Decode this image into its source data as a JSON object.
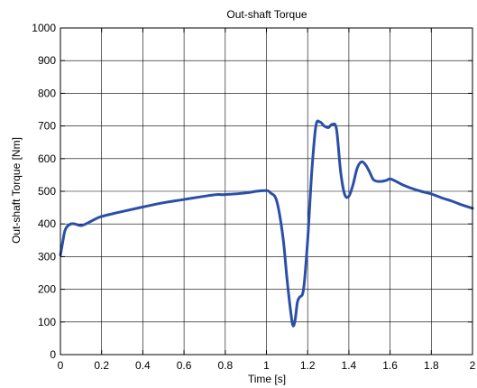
{
  "chart_data": {
    "type": "line",
    "title": "Out-shaft Torque",
    "xlabel": "Time [s]",
    "ylabel": "Out-shaft Torque [Nm]",
    "xlim": [
      0,
      2
    ],
    "ylim": [
      0,
      1000
    ],
    "grid": true,
    "x_ticks": [
      0,
      0.2,
      0.4,
      0.6,
      0.8,
      1,
      1.2,
      1.4,
      1.6,
      1.8,
      2
    ],
    "x_tick_labels": [
      "0",
      "0.2",
      "0.4",
      "0.6",
      "0.8",
      "1",
      "1.2",
      "1.4",
      "1.6",
      "1.8",
      "2"
    ],
    "y_ticks": [
      0,
      100,
      200,
      300,
      400,
      500,
      600,
      700,
      800,
      900,
      1000
    ],
    "y_tick_labels": [
      "0",
      "100",
      "200",
      "300",
      "400",
      "500",
      "600",
      "700",
      "800",
      "900",
      "1000"
    ],
    "line_color": "#2b4fa8",
    "series": [
      {
        "x": [
          0,
          0.01,
          0.02,
          0.03,
          0.05,
          0.07,
          0.1,
          0.13,
          0.16,
          0.2,
          0.3,
          0.4,
          0.5,
          0.6,
          0.7,
          0.76,
          0.8,
          0.9,
          0.95,
          1.0,
          1.02,
          1.05,
          1.08,
          1.1,
          1.12,
          1.13,
          1.14,
          1.15,
          1.16,
          1.18,
          1.2,
          1.22,
          1.24,
          1.26,
          1.28,
          1.3,
          1.32,
          1.34,
          1.36,
          1.38,
          1.4,
          1.42,
          1.44,
          1.46,
          1.48,
          1.5,
          1.52,
          1.55,
          1.58,
          1.6,
          1.63,
          1.66,
          1.7,
          1.75,
          1.8,
          1.85,
          1.9,
          1.95,
          2.0
        ],
        "y": [
          305,
          340,
          375,
          390,
          400,
          400,
          395,
          402,
          412,
          423,
          438,
          452,
          465,
          475,
          485,
          490,
          490,
          495,
          500,
          502,
          495,
          470,
          360,
          230,
          120,
          88,
          110,
          160,
          175,
          200,
          350,
          560,
          700,
          712,
          700,
          695,
          705,
          690,
          560,
          490,
          485,
          520,
          570,
          590,
          582,
          560,
          535,
          530,
          533,
          538,
          530,
          520,
          510,
          500,
          492,
          480,
          470,
          458,
          448
        ]
      }
    ]
  }
}
